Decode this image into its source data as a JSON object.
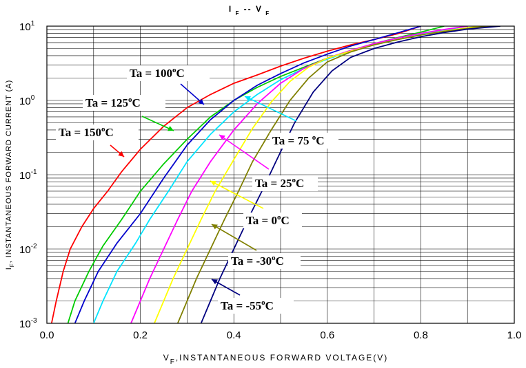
{
  "chart_data": {
    "type": "line",
    "title": "I F -- V F",
    "xlabel": "VF,INSTANTANEOUS FORWARD VOLTAGE(V)",
    "ylabel": "IF, INSTANTANEOUS FORWARD CURRENT (A)",
    "xscale": "linear",
    "yscale": "log",
    "xlim": [
      0.0,
      1.0
    ],
    "ylim": [
      0.001,
      10
    ],
    "xticks": [
      "0.0",
      "0.2",
      "0.4",
      "0.6",
      "0.8",
      "1.0"
    ],
    "yticks": [
      {
        "base": "10",
        "exp": "-3"
      },
      {
        "base": "10",
        "exp": "-2"
      },
      {
        "base": "10",
        "exp": "-1"
      },
      {
        "base": "10",
        "exp": "0"
      },
      {
        "base": "10",
        "exp": "1"
      }
    ],
    "grid": true,
    "series": [
      {
        "name": "Ta = 150°C",
        "color": "#ff0000",
        "x": [
          0.01,
          0.02,
          0.035,
          0.05,
          0.075,
          0.1,
          0.13,
          0.16,
          0.2,
          0.25,
          0.3,
          0.35,
          0.4,
          0.45,
          0.5,
          0.55,
          0.6,
          0.65,
          0.7,
          0.75,
          0.8
        ],
        "y": [
          0.001,
          0.002,
          0.005,
          0.01,
          0.02,
          0.035,
          0.06,
          0.11,
          0.22,
          0.45,
          0.8,
          1.2,
          1.7,
          2.2,
          2.9,
          3.7,
          4.6,
          5.6,
          6.6,
          7.9,
          10
        ]
      },
      {
        "name": "Ta = 125°C",
        "color": "#00cc00",
        "x": [
          0.045,
          0.06,
          0.09,
          0.12,
          0.16,
          0.2,
          0.25,
          0.3,
          0.35,
          0.4,
          0.45,
          0.5,
          0.55,
          0.6,
          0.65,
          0.7,
          0.75,
          0.8,
          0.85
        ],
        "y": [
          0.001,
          0.002,
          0.005,
          0.011,
          0.025,
          0.06,
          0.14,
          0.3,
          0.6,
          1.0,
          1.5,
          2.1,
          2.8,
          3.7,
          4.7,
          5.8,
          7.0,
          8.3,
          10
        ]
      },
      {
        "name": "Ta = 100°C",
        "color": "#0000cc",
        "x": [
          0.06,
          0.08,
          0.11,
          0.15,
          0.2,
          0.25,
          0.3,
          0.35,
          0.4,
          0.45,
          0.5,
          0.55,
          0.6,
          0.65,
          0.7,
          0.75,
          0.8
        ],
        "y": [
          0.001,
          0.002,
          0.005,
          0.012,
          0.03,
          0.09,
          0.25,
          0.55,
          1.0,
          1.6,
          2.3,
          3.2,
          4.2,
          5.4,
          6.6,
          8.1,
          10
        ]
      },
      {
        "name": "Ta = 75 °C",
        "color": "#00e5ff",
        "x": [
          0.1,
          0.12,
          0.15,
          0.19,
          0.22,
          0.26,
          0.3,
          0.35,
          0.4,
          0.45,
          0.5,
          0.55,
          0.6,
          0.65,
          0.7,
          0.75,
          0.8,
          0.85,
          0.9
        ],
        "y": [
          0.001,
          0.002,
          0.005,
          0.012,
          0.025,
          0.06,
          0.15,
          0.35,
          0.7,
          1.2,
          1.9,
          2.7,
          3.6,
          4.6,
          5.6,
          6.6,
          7.7,
          8.8,
          10
        ]
      },
      {
        "name": "Ta = 25°C",
        "color": "#ff00ff",
        "x": [
          0.18,
          0.2,
          0.22,
          0.25,
          0.28,
          0.31,
          0.35,
          0.4,
          0.45,
          0.5,
          0.55,
          0.6,
          0.65,
          0.7,
          0.75,
          0.8,
          0.85,
          0.9
        ],
        "y": [
          0.001,
          0.002,
          0.004,
          0.01,
          0.025,
          0.06,
          0.15,
          0.4,
          0.9,
          1.7,
          2.7,
          3.7,
          4.7,
          5.8,
          6.9,
          8.0,
          9.0,
          10
        ]
      },
      {
        "name": "Ta = 0°C",
        "color": "#ffff00",
        "x": [
          0.23,
          0.25,
          0.27,
          0.3,
          0.33,
          0.36,
          0.4,
          0.44,
          0.48,
          0.52,
          0.56,
          0.6,
          0.65,
          0.7,
          0.75,
          0.8,
          0.85,
          0.9,
          0.93
        ],
        "y": [
          0.001,
          0.002,
          0.004,
          0.01,
          0.025,
          0.06,
          0.16,
          0.42,
          0.95,
          1.8,
          2.8,
          3.7,
          4.6,
          5.6,
          6.6,
          7.6,
          8.6,
          9.5,
          10
        ]
      },
      {
        "name": "Ta = -30°C",
        "color": "#808000",
        "x": [
          0.28,
          0.3,
          0.32,
          0.35,
          0.38,
          0.41,
          0.44,
          0.48,
          0.52,
          0.56,
          0.6,
          0.65,
          0.7,
          0.75,
          0.8,
          0.85,
          0.9,
          0.95
        ],
        "y": [
          0.001,
          0.002,
          0.004,
          0.01,
          0.025,
          0.06,
          0.15,
          0.4,
          1.0,
          2.0,
          3.3,
          4.5,
          5.6,
          6.6,
          7.6,
          8.5,
          9.3,
          10
        ]
      },
      {
        "name": "Ta = -55°C",
        "color": "#000080",
        "x": [
          0.33,
          0.35,
          0.37,
          0.4,
          0.43,
          0.46,
          0.49,
          0.53,
          0.57,
          0.61,
          0.65,
          0.7,
          0.75,
          0.8,
          0.85,
          0.9,
          0.97
        ],
        "y": [
          0.001,
          0.002,
          0.004,
          0.01,
          0.025,
          0.06,
          0.15,
          0.5,
          1.3,
          2.5,
          3.8,
          5.0,
          6.1,
          7.2,
          8.2,
          9.1,
          10
        ]
      }
    ],
    "annotations": [
      {
        "text": "Ta = 100",
        "sup": "o",
        "unit": "C"
      },
      {
        "text": "Ta = 125",
        "sup": "o",
        "unit": "C"
      },
      {
        "text": "Ta = 150",
        "sup": "o",
        "unit": "C"
      },
      {
        "text": "Ta = 75 ",
        "sup": "o",
        "unit": "C"
      },
      {
        "text": "Ta = 25",
        "sup": "o",
        "unit": "C"
      },
      {
        "text": "Ta = 0",
        "sup": "o",
        "unit": "C"
      },
      {
        "text": "Ta = -30",
        "sup": "o",
        "unit": "C"
      },
      {
        "text": "Ta = -55",
        "sup": "o",
        "unit": "C"
      }
    ]
  }
}
